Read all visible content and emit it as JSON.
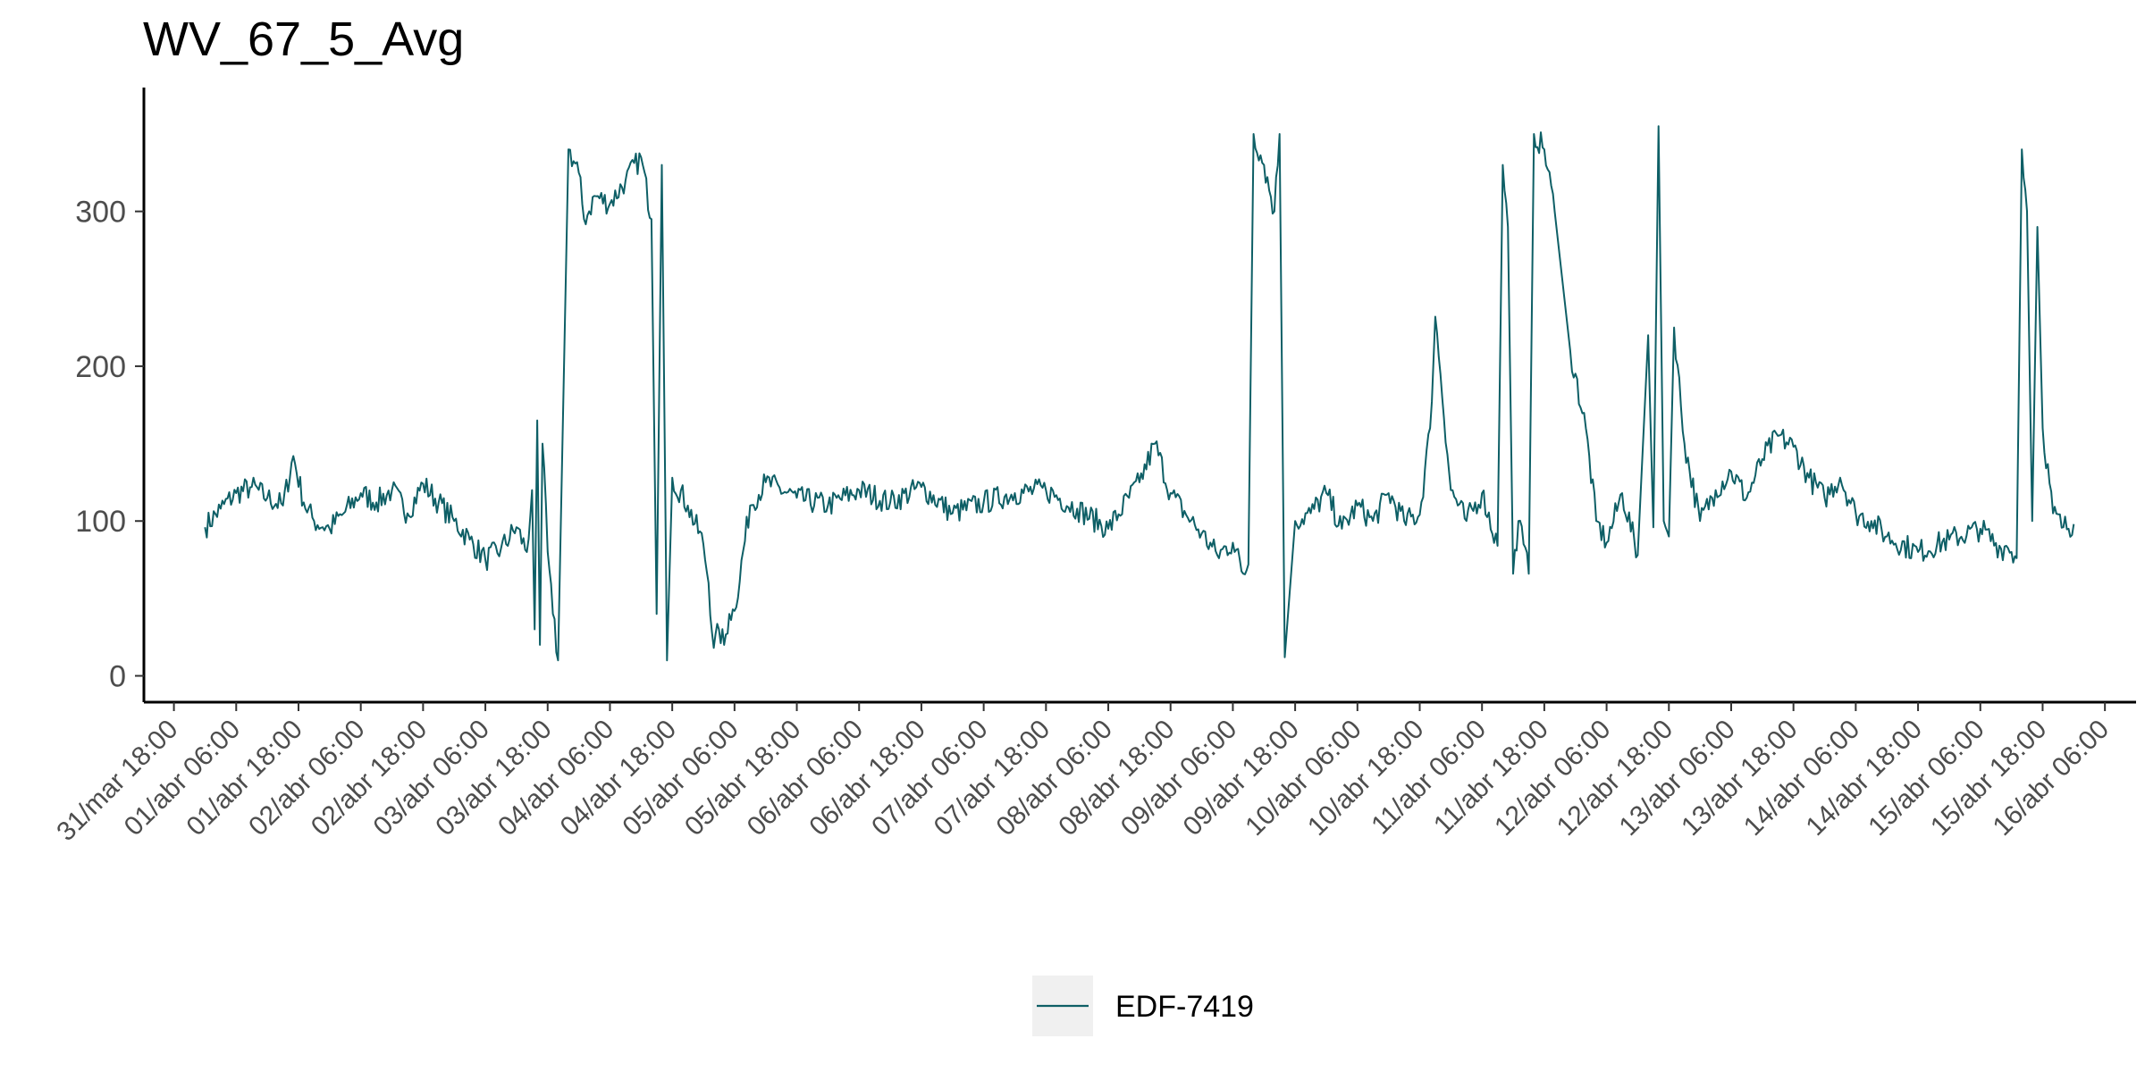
{
  "chart_data": {
    "type": "line",
    "title": "WV_67_5_Avg",
    "xlabel": "",
    "ylabel": "",
    "grid": false,
    "legend_position": "bottom",
    "line_color": "#0e5f66",
    "ylim": [
      -17,
      380
    ],
    "xlim": [
      "2023-03-31 12:13",
      "2023-04-16 12:00"
    ],
    "y_ticks": [
      0,
      100,
      200,
      300
    ],
    "x_ticks": [
      "31/mar 18:00",
      "01/abr 06:00",
      "01/abr 18:00",
      "02/abr 06:00",
      "02/abr 18:00",
      "03/abr 06:00",
      "03/abr 18:00",
      "04/abr 06:00",
      "04/abr 18:00",
      "05/abr 06:00",
      "05/abr 18:00",
      "06/abr 06:00",
      "06/abr 18:00",
      "07/abr 06:00",
      "07/abr 18:00",
      "08/abr 06:00",
      "08/abr 18:00",
      "09/abr 06:00",
      "09/abr 18:00",
      "10/abr 06:00",
      "10/abr 18:00",
      "11/abr 06:00",
      "11/abr 18:00",
      "12/abr 06:00",
      "12/abr 18:00",
      "13/abr 06:00",
      "13/abr 18:00",
      "14/abr 06:00",
      "14/abr 18:00",
      "15/abr 06:00",
      "15/abr 18:00",
      "16/abr 06:00"
    ],
    "series": [
      {
        "name": "EDF-7419",
        "x": [
          "2023-04-01 00:00",
          "2023-04-01 03:00",
          "2023-04-01 06:00",
          "2023-04-01 09:00",
          "2023-04-01 12:00",
          "2023-04-01 15:00",
          "2023-04-01 17:00",
          "2023-04-01 19:00",
          "2023-04-01 21:00",
          "2023-04-02 00:00",
          "2023-04-02 03:00",
          "2023-04-02 06:00",
          "2023-04-02 09:00",
          "2023-04-02 12:00",
          "2023-04-02 15:00",
          "2023-04-02 18:00",
          "2023-04-02 21:00",
          "2023-04-03 00:00",
          "2023-04-03 03:00",
          "2023-04-03 06:00",
          "2023-04-03 09:00",
          "2023-04-03 12:00",
          "2023-04-03 14:00",
          "2023-04-03 15:00",
          "2023-04-03 15:30",
          "2023-04-03 16:00",
          "2023-04-03 16:30",
          "2023-04-03 17:00",
          "2023-04-03 18:00",
          "2023-04-03 19:00",
          "2023-04-03 20:00",
          "2023-04-03 22:00",
          "2023-04-04 00:00",
          "2023-04-04 01:00",
          "2023-04-04 02:00",
          "2023-04-04 03:00",
          "2023-04-04 06:00",
          "2023-04-04 09:00",
          "2023-04-04 12:00",
          "2023-04-04 14:00",
          "2023-04-04 15:00",
          "2023-04-04 16:00",
          "2023-04-04 17:00",
          "2023-04-04 18:00",
          "2023-04-04 21:00",
          "2023-04-05 00:00",
          "2023-04-05 01:00",
          "2023-04-05 02:00",
          "2023-04-05 03:00",
          "2023-04-05 04:00",
          "2023-04-05 05:00",
          "2023-04-05 06:00",
          "2023-04-05 09:00",
          "2023-04-05 12:00",
          "2023-04-05 18:00",
          "2023-04-06 00:00",
          "2023-04-06 06:00",
          "2023-04-06 12:00",
          "2023-04-06 18:00",
          "2023-04-07 00:00",
          "2023-04-07 06:00",
          "2023-04-07 12:00",
          "2023-04-07 18:00",
          "2023-04-08 00:00",
          "2023-04-08 06:00",
          "2023-04-08 12:00",
          "2023-04-08 15:00",
          "2023-04-08 18:00",
          "2023-04-08 21:00",
          "2023-04-09 00:00",
          "2023-04-09 03:00",
          "2023-04-09 06:00",
          "2023-04-09 08:00",
          "2023-04-09 09:00",
          "2023-04-09 10:00",
          "2023-04-09 12:00",
          "2023-04-09 14:00",
          "2023-04-09 15:00",
          "2023-04-09 16:00",
          "2023-04-09 18:00",
          "2023-04-09 21:00",
          "2023-04-10 00:00",
          "2023-04-10 03:00",
          "2023-04-10 06:00",
          "2023-04-10 09:00",
          "2023-04-10 12:00",
          "2023-04-10 15:00",
          "2023-04-10 18:00",
          "2023-04-10 20:00",
          "2023-04-10 21:00",
          "2023-04-10 22:00",
          "2023-04-11 00:00",
          "2023-04-11 03:00",
          "2023-04-11 06:00",
          "2023-04-11 09:00",
          "2023-04-11 10:00",
          "2023-04-11 11:00",
          "2023-04-11 12:00",
          "2023-04-11 13:00",
          "2023-04-11 14:00",
          "2023-04-11 15:00",
          "2023-04-11 16:00",
          "2023-04-11 18:00",
          "2023-04-11 20:00",
          "2023-04-11 23:00",
          "2023-04-12 02:00",
          "2023-04-12 04:00",
          "2023-04-12 06:00",
          "2023-04-12 09:00",
          "2023-04-12 12:00",
          "2023-04-12 14:00",
          "2023-04-12 15:00",
          "2023-04-12 16:00",
          "2023-04-12 17:00",
          "2023-04-12 18:00",
          "2023-04-12 19:00",
          "2023-04-12 21:00",
          "2023-04-13 00:00",
          "2023-04-13 03:00",
          "2023-04-13 06:00",
          "2023-04-13 09:00",
          "2023-04-13 12:00",
          "2023-04-13 15:00",
          "2023-04-13 18:00",
          "2023-04-13 21:00",
          "2023-04-14 00:00",
          "2023-04-14 03:00",
          "2023-04-14 06:00",
          "2023-04-14 09:00",
          "2023-04-14 12:00",
          "2023-04-14 18:00",
          "2023-04-15 00:00",
          "2023-04-15 06:00",
          "2023-04-15 10:00",
          "2023-04-15 11:00",
          "2023-04-15 12:00",
          "2023-04-15 13:00",
          "2023-04-15 14:00",
          "2023-04-15 15:00",
          "2023-04-15 16:00",
          "2023-04-15 17:00",
          "2023-04-15 18:00",
          "2023-04-15 20:00",
          "2023-04-15 22:00",
          "2023-04-16 00:00"
        ],
        "y": [
          96,
          108,
          118,
          122,
          115,
          110,
          142,
          112,
          100,
          95,
          106,
          118,
          112,
          120,
          105,
          124,
          112,
          100,
          88,
          75,
          82,
          96,
          80,
          120,
          30,
          165,
          20,
          150,
          80,
          40,
          10,
          340,
          325,
          295,
          300,
          310,
          305,
          320,
          335,
          295,
          40,
          330,
          10,
          128,
          110,
          85,
          60,
          18,
          30,
          20,
          40,
          42,
          110,
          125,
          115,
          110,
          120,
          112,
          122,
          105,
          112,
          118,
          120,
          108,
          95,
          125,
          150,
          118,
          104,
          92,
          78,
          86,
          66,
          72,
          350,
          330,
          300,
          350,
          12,
          100,
          105,
          118,
          95,
          110,
          100,
          118,
          100,
          104,
          160,
          232,
          195,
          120,
          100,
          118,
          84,
          330,
          290,
          66,
          100,
          85,
          66,
          350,
          340,
          300,
          210,
          160,
          100,
          86,
          118,
          78,
          220,
          96,
          355,
          100,
          90,
          225,
          150,
          100,
          120,
          132,
          115,
          140,
          155,
          148,
          128,
          115,
          128,
          105,
          100,
          90,
          80,
          88,
          95,
          82,
          84,
          80,
          76,
          340,
          300,
          100,
          290,
          160,
          105,
          96,
          98
        ]
      }
    ]
  }
}
